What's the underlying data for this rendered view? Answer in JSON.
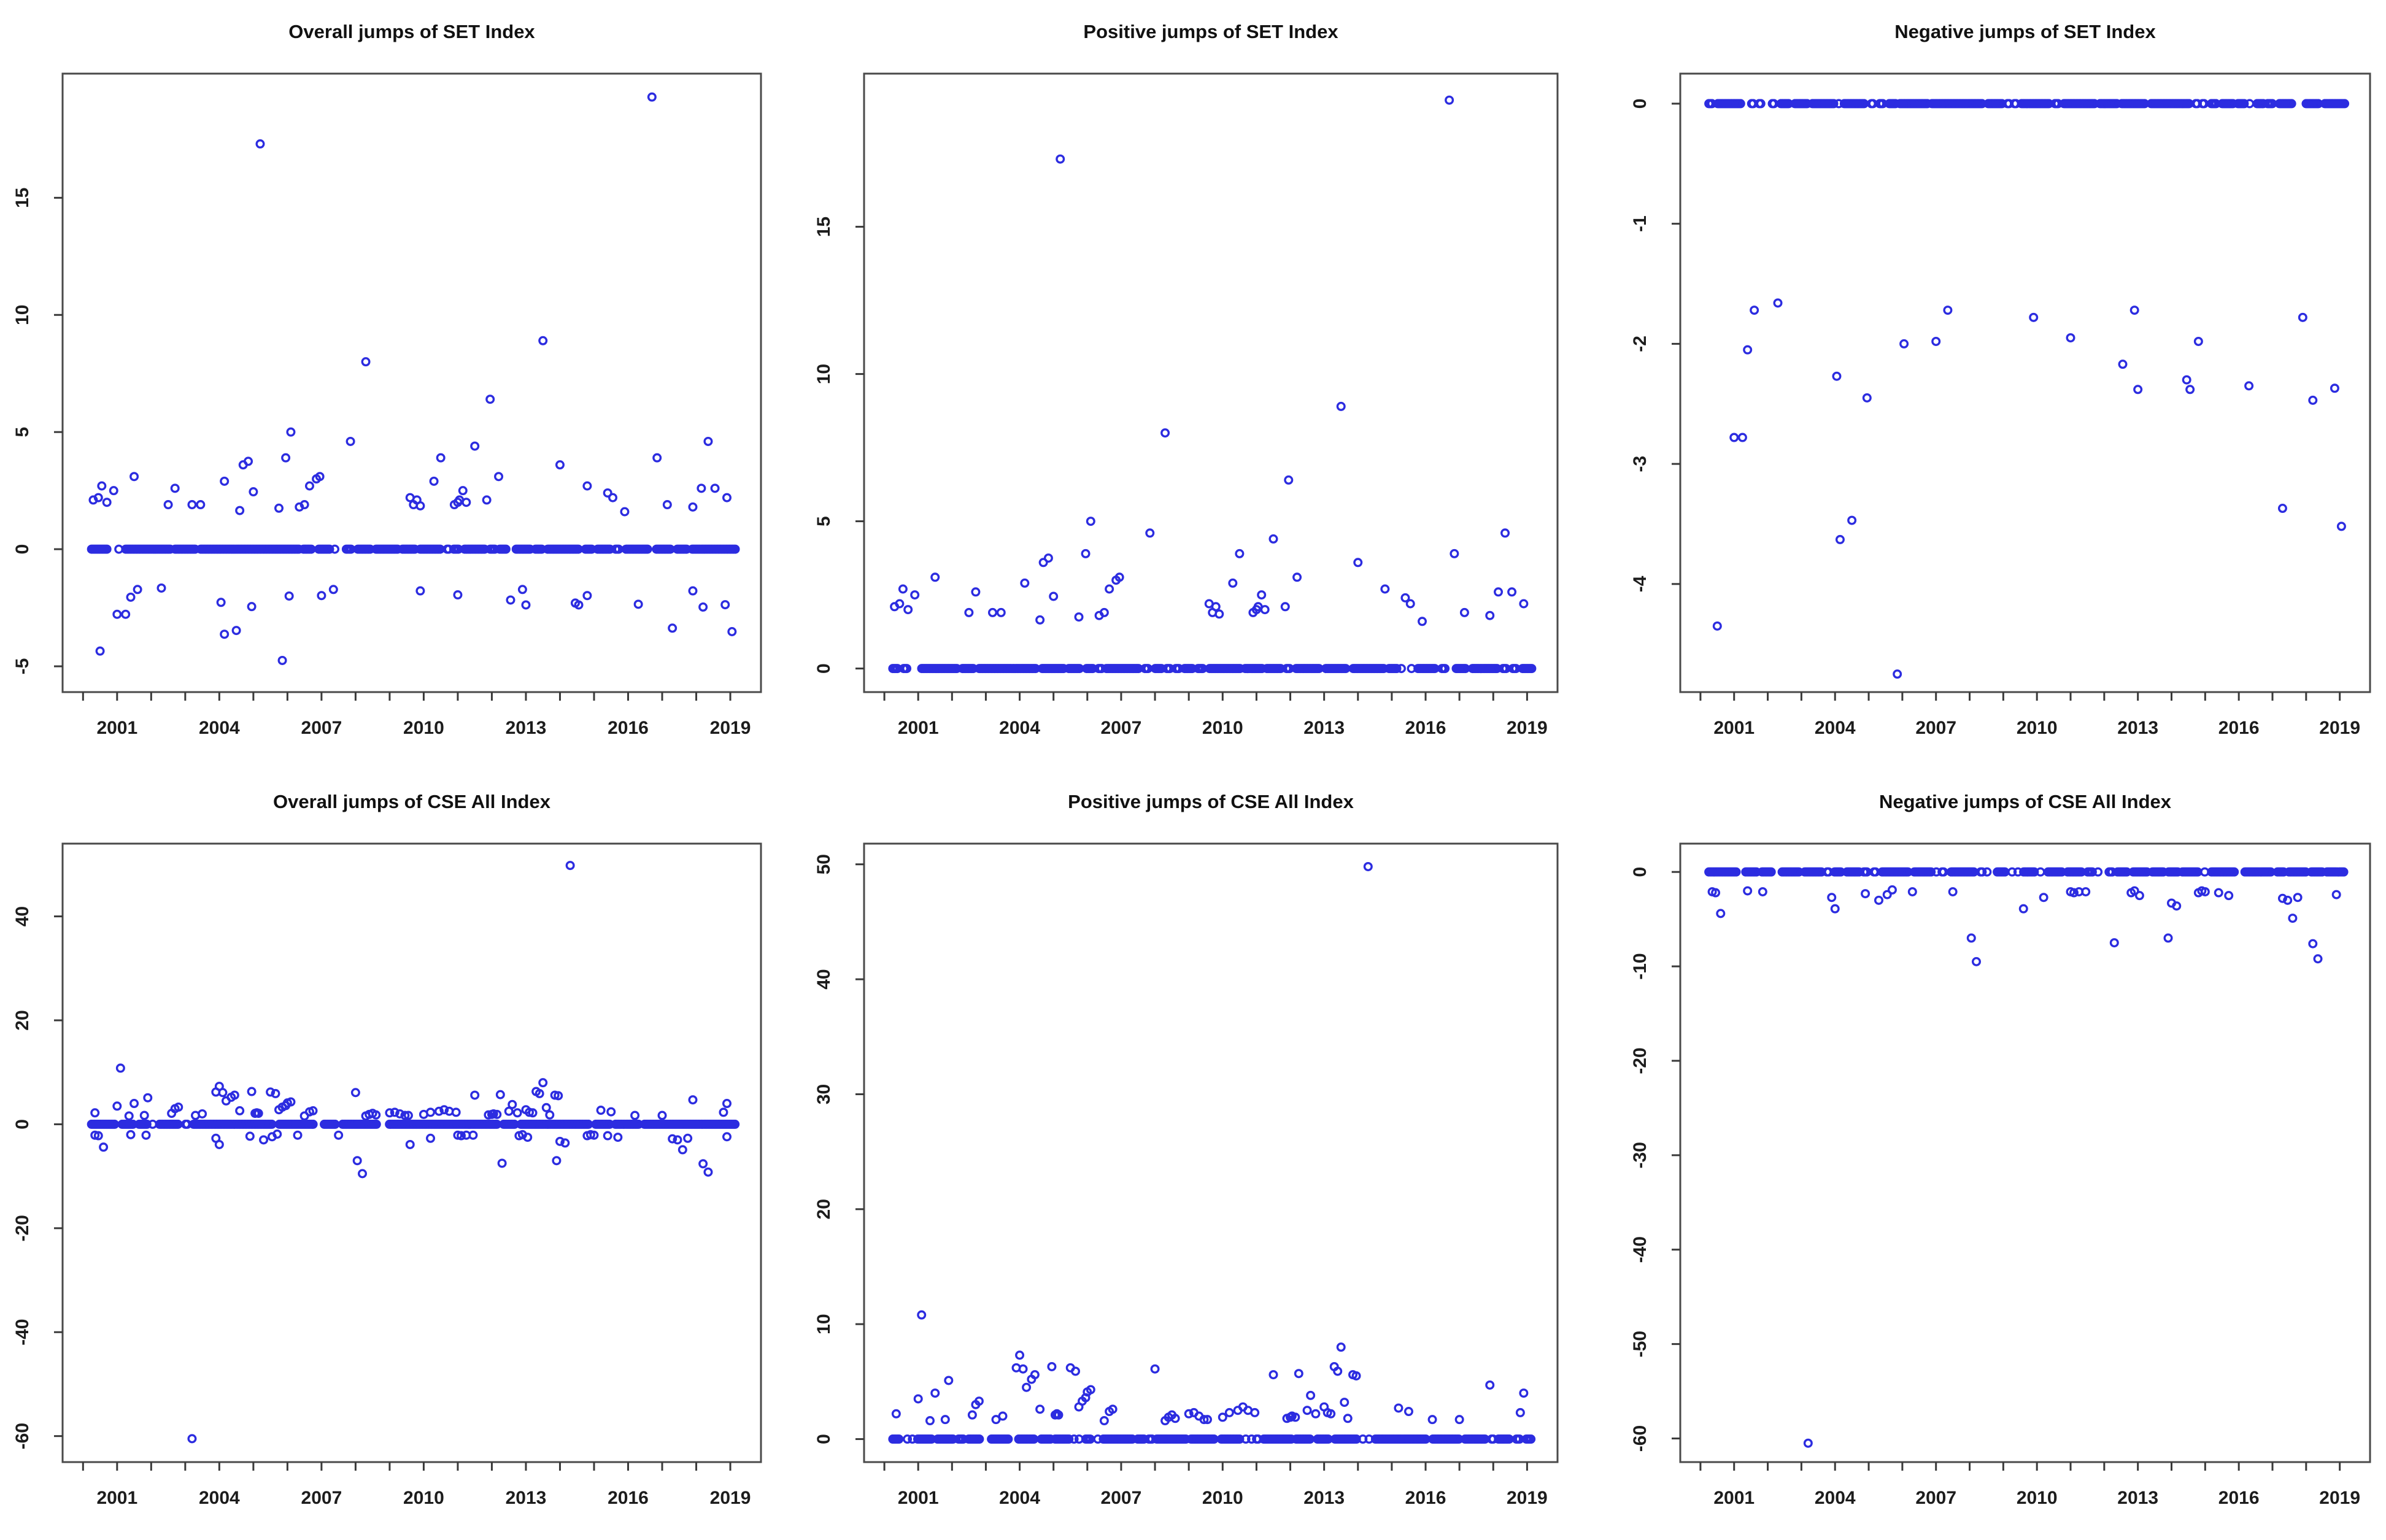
{
  "figure": {
    "background": "#ffffff",
    "point_color": "#2c2ce0",
    "box_color": "#4a4a4a",
    "tick_color": "#3a3a3a",
    "label_color": "#1c1c1c",
    "title_color": "#111111"
  },
  "series": {
    "set_positive": [
      [
        2000.3,
        2.1
      ],
      [
        2000.45,
        2.2
      ],
      [
        2000.55,
        2.7
      ],
      [
        2000.7,
        2.0
      ],
      [
        2000.9,
        2.5
      ],
      [
        2001.5,
        3.1
      ],
      [
        2002.5,
        1.9
      ],
      [
        2002.7,
        2.6
      ],
      [
        2003.2,
        1.9
      ],
      [
        2003.45,
        1.9
      ],
      [
        2004.15,
        2.9
      ],
      [
        2004.6,
        1.65
      ],
      [
        2004.7,
        3.6
      ],
      [
        2004.85,
        3.75
      ],
      [
        2005.0,
        2.45
      ],
      [
        2005.2,
        17.3
      ],
      [
        2005.75,
        1.75
      ],
      [
        2005.95,
        3.9
      ],
      [
        2006.1,
        5.0
      ],
      [
        2006.35,
        1.8
      ],
      [
        2006.5,
        1.9
      ],
      [
        2006.65,
        2.7
      ],
      [
        2006.85,
        3.0
      ],
      [
        2006.95,
        3.1
      ],
      [
        2007.85,
        4.6
      ],
      [
        2008.3,
        8.0
      ],
      [
        2009.6,
        2.2
      ],
      [
        2009.7,
        1.9
      ],
      [
        2009.8,
        2.1
      ],
      [
        2009.9,
        1.85
      ],
      [
        2010.3,
        2.9
      ],
      [
        2010.5,
        3.9
      ],
      [
        2010.9,
        1.9
      ],
      [
        2011.0,
        2.0
      ],
      [
        2011.05,
        2.1
      ],
      [
        2011.15,
        2.5
      ],
      [
        2011.25,
        2.0
      ],
      [
        2011.5,
        4.4
      ],
      [
        2011.85,
        2.1
      ],
      [
        2011.95,
        6.4
      ],
      [
        2012.2,
        3.1
      ],
      [
        2013.5,
        8.9
      ],
      [
        2014.0,
        3.6
      ],
      [
        2014.8,
        2.7
      ],
      [
        2015.4,
        2.4
      ],
      [
        2015.55,
        2.2
      ],
      [
        2015.9,
        1.6
      ],
      [
        2016.7,
        19.3
      ],
      [
        2016.85,
        3.9
      ],
      [
        2017.15,
        1.9
      ],
      [
        2017.9,
        1.8
      ],
      [
        2018.15,
        2.6
      ],
      [
        2018.35,
        4.6
      ],
      [
        2018.55,
        2.6
      ],
      [
        2018.9,
        2.2
      ]
    ],
    "set_negative": [
      [
        2000.5,
        -4.35
      ],
      [
        2001.0,
        -2.78
      ],
      [
        2001.25,
        -2.78
      ],
      [
        2001.4,
        -2.05
      ],
      [
        2001.6,
        -1.72
      ],
      [
        2002.3,
        -1.66
      ],
      [
        2004.05,
        -2.27
      ],
      [
        2004.15,
        -3.63
      ],
      [
        2004.5,
        -3.47
      ],
      [
        2004.95,
        -2.45
      ],
      [
        2005.85,
        -4.75
      ],
      [
        2006.05,
        -2.0
      ],
      [
        2007.0,
        -1.98
      ],
      [
        2007.35,
        -1.72
      ],
      [
        2009.9,
        -1.78
      ],
      [
        2011.0,
        -1.95
      ],
      [
        2012.55,
        -2.17
      ],
      [
        2012.9,
        -1.72
      ],
      [
        2013.0,
        -2.38
      ],
      [
        2014.45,
        -2.3
      ],
      [
        2014.55,
        -2.38
      ],
      [
        2014.8,
        -1.98
      ],
      [
        2016.3,
        -2.35
      ],
      [
        2017.3,
        -3.37
      ],
      [
        2017.9,
        -1.78
      ],
      [
        2018.2,
        -2.47
      ],
      [
        2018.85,
        -2.37
      ],
      [
        2019.05,
        -3.52
      ]
    ],
    "cse_positive": [
      [
        2000.35,
        2.2
      ],
      [
        2001.0,
        3.5
      ],
      [
        2001.1,
        10.8
      ],
      [
        2001.35,
        1.6
      ],
      [
        2001.5,
        4.0
      ],
      [
        2001.8,
        1.7
      ],
      [
        2001.9,
        5.1
      ],
      [
        2002.6,
        2.1
      ],
      [
        2002.7,
        3.0
      ],
      [
        2002.8,
        3.3
      ],
      [
        2003.3,
        1.7
      ],
      [
        2003.5,
        2.0
      ],
      [
        2003.9,
        6.2
      ],
      [
        2004.0,
        7.3
      ],
      [
        2004.1,
        6.1
      ],
      [
        2004.2,
        4.5
      ],
      [
        2004.35,
        5.2
      ],
      [
        2004.45,
        5.6
      ],
      [
        2004.6,
        2.6
      ],
      [
        2004.95,
        6.3
      ],
      [
        2005.05,
        2.1
      ],
      [
        2005.1,
        2.2
      ],
      [
        2005.15,
        2.1
      ],
      [
        2005.5,
        6.2
      ],
      [
        2005.65,
        5.9
      ],
      [
        2005.75,
        2.8
      ],
      [
        2005.85,
        3.3
      ],
      [
        2005.95,
        3.6
      ],
      [
        2006.0,
        4.1
      ],
      [
        2006.1,
        4.3
      ],
      [
        2006.5,
        1.6
      ],
      [
        2006.65,
        2.4
      ],
      [
        2006.75,
        2.6
      ],
      [
        2008.0,
        6.1
      ],
      [
        2008.3,
        1.6
      ],
      [
        2008.4,
        1.9
      ],
      [
        2008.5,
        2.1
      ],
      [
        2008.6,
        1.8
      ],
      [
        2009.0,
        2.2
      ],
      [
        2009.15,
        2.3
      ],
      [
        2009.3,
        2.0
      ],
      [
        2009.45,
        1.7
      ],
      [
        2009.55,
        1.7
      ],
      [
        2010.0,
        1.9
      ],
      [
        2010.2,
        2.3
      ],
      [
        2010.45,
        2.5
      ],
      [
        2010.6,
        2.8
      ],
      [
        2010.75,
        2.5
      ],
      [
        2010.95,
        2.3
      ],
      [
        2011.5,
        5.6
      ],
      [
        2011.9,
        1.8
      ],
      [
        2012.0,
        1.9
      ],
      [
        2012.05,
        2.0
      ],
      [
        2012.15,
        1.9
      ],
      [
        2012.25,
        5.7
      ],
      [
        2012.5,
        2.5
      ],
      [
        2012.6,
        3.8
      ],
      [
        2012.75,
        2.2
      ],
      [
        2013.0,
        2.8
      ],
      [
        2013.1,
        2.3
      ],
      [
        2013.2,
        2.2
      ],
      [
        2013.3,
        6.3
      ],
      [
        2013.4,
        5.9
      ],
      [
        2013.5,
        8.0
      ],
      [
        2013.6,
        3.2
      ],
      [
        2013.7,
        1.8
      ],
      [
        2013.85,
        5.6
      ],
      [
        2013.95,
        5.5
      ],
      [
        2014.3,
        49.8
      ],
      [
        2015.2,
        2.7
      ],
      [
        2015.5,
        2.4
      ],
      [
        2016.2,
        1.7
      ],
      [
        2017.0,
        1.7
      ],
      [
        2017.9,
        4.7
      ],
      [
        2018.8,
        2.3
      ],
      [
        2018.9,
        4.0
      ]
    ],
    "cse_negative": [
      [
        2000.35,
        -2.1
      ],
      [
        2000.45,
        -2.2
      ],
      [
        2000.6,
        -4.4
      ],
      [
        2001.4,
        -2.0
      ],
      [
        2001.85,
        -2.1
      ],
      [
        2003.2,
        -60.5
      ],
      [
        2003.9,
        -2.7
      ],
      [
        2004.0,
        -3.9
      ],
      [
        2004.9,
        -2.3
      ],
      [
        2005.3,
        -3.0
      ],
      [
        2005.55,
        -2.4
      ],
      [
        2005.7,
        -1.9
      ],
      [
        2006.3,
        -2.1
      ],
      [
        2007.5,
        -2.1
      ],
      [
        2008.05,
        -7.0
      ],
      [
        2008.2,
        -9.5
      ],
      [
        2009.6,
        -3.9
      ],
      [
        2010.2,
        -2.7
      ],
      [
        2011.0,
        -2.1
      ],
      [
        2011.1,
        -2.2
      ],
      [
        2011.25,
        -2.1
      ],
      [
        2011.45,
        -2.1
      ],
      [
        2012.3,
        -7.5
      ],
      [
        2012.8,
        -2.2
      ],
      [
        2012.9,
        -2.0
      ],
      [
        2013.05,
        -2.5
      ],
      [
        2013.9,
        -7.0
      ],
      [
        2014.0,
        -3.3
      ],
      [
        2014.15,
        -3.6
      ],
      [
        2014.8,
        -2.2
      ],
      [
        2014.9,
        -2.0
      ],
      [
        2015.0,
        -2.1
      ],
      [
        2015.4,
        -2.2
      ],
      [
        2015.7,
        -2.5
      ],
      [
        2017.3,
        -2.8
      ],
      [
        2017.45,
        -3.0
      ],
      [
        2017.6,
        -4.9
      ],
      [
        2017.75,
        -2.7
      ],
      [
        2018.2,
        -7.6
      ],
      [
        2018.35,
        -9.2
      ],
      [
        2018.9,
        -2.4
      ]
    ]
  },
  "chart_data": [
    {
      "id": "set-overall",
      "type": "scatter",
      "title": "Overall jumps of SET Index",
      "xlim": [
        1999.4,
        2019.9
      ],
      "ylim": [
        -6.1,
        20.3
      ],
      "x_ticks": {
        "minor": [
          2000,
          2001,
          2002,
          2003,
          2004,
          2005,
          2006,
          2007,
          2008,
          2009,
          2010,
          2011,
          2012,
          2013,
          2014,
          2015,
          2016,
          2017,
          2018,
          2019
        ],
        "labeled": [
          "2001",
          "2004",
          "2007",
          "2010",
          "2013",
          "2016",
          "2019"
        ],
        "labeled_years": [
          2001,
          2004,
          2007,
          2010,
          2013,
          2016,
          2019
        ]
      },
      "y_ticks": [
        "-5",
        "0",
        "5",
        "10",
        "15"
      ],
      "y_tick_values": [
        -5,
        0,
        5,
        10,
        15
      ],
      "zero_stripe": {
        "y": 0,
        "x_start": 2000.25,
        "x_end": 2019.15,
        "gap_fraction": 0.08
      },
      "points_from": [
        "set_positive",
        "set_negative"
      ]
    },
    {
      "id": "set-positive",
      "type": "scatter",
      "title": "Positive jumps of SET Index",
      "xlim": [
        1999.4,
        2019.9
      ],
      "ylim": [
        -0.8,
        20.2
      ],
      "x_ticks": {
        "minor": [
          2000,
          2001,
          2002,
          2003,
          2004,
          2005,
          2006,
          2007,
          2008,
          2009,
          2010,
          2011,
          2012,
          2013,
          2014,
          2015,
          2016,
          2017,
          2018,
          2019
        ],
        "labeled": [
          "2001",
          "2004",
          "2007",
          "2010",
          "2013",
          "2016",
          "2019"
        ],
        "labeled_years": [
          2001,
          2004,
          2007,
          2010,
          2013,
          2016,
          2019
        ]
      },
      "y_ticks": [
        "0",
        "5",
        "10",
        "15"
      ],
      "y_tick_values": [
        0,
        5,
        10,
        15
      ],
      "zero_stripe": {
        "y": 0,
        "x_start": 2000.25,
        "x_end": 2019.15,
        "gap_fraction": 0.08
      },
      "points_from": [
        "set_positive"
      ]
    },
    {
      "id": "set-negative",
      "type": "scatter",
      "title": "Negative jumps of SET Index",
      "xlim": [
        1999.4,
        2019.9
      ],
      "ylim": [
        -4.9,
        0.25
      ],
      "x_ticks": {
        "minor": [
          2000,
          2001,
          2002,
          2003,
          2004,
          2005,
          2006,
          2007,
          2008,
          2009,
          2010,
          2011,
          2012,
          2013,
          2014,
          2015,
          2016,
          2017,
          2018,
          2019
        ],
        "labeled": [
          "2001",
          "2004",
          "2007",
          "2010",
          "2013",
          "2016",
          "2019"
        ],
        "labeled_years": [
          2001,
          2004,
          2007,
          2010,
          2013,
          2016,
          2019
        ]
      },
      "y_ticks": [
        "0",
        "-1",
        "-2",
        "-3",
        "-4"
      ],
      "y_tick_values": [
        0,
        -1,
        -2,
        -3,
        -4
      ],
      "zero_stripe": {
        "y": 0,
        "x_start": 2000.25,
        "x_end": 2019.15,
        "gap_fraction": 0.14
      },
      "points_from": [
        "set_negative"
      ]
    },
    {
      "id": "cse-overall",
      "type": "scatter",
      "title": "Overall jumps of CSE All Index",
      "xlim": [
        1999.4,
        2019.9
      ],
      "ylim": [
        -65.0,
        54.0
      ],
      "x_ticks": {
        "minor": [
          2000,
          2001,
          2002,
          2003,
          2004,
          2005,
          2006,
          2007,
          2008,
          2009,
          2010,
          2011,
          2012,
          2013,
          2014,
          2015,
          2016,
          2017,
          2018,
          2019
        ],
        "labeled": [
          "2001",
          "2004",
          "2007",
          "2010",
          "2013",
          "2016",
          "2019"
        ],
        "labeled_years": [
          2001,
          2004,
          2007,
          2010,
          2013,
          2016,
          2019
        ]
      },
      "y_ticks": [
        "-60",
        "-40",
        "-20",
        "0",
        "20",
        "40"
      ],
      "y_tick_values": [
        -60,
        -40,
        -20,
        0,
        20,
        40
      ],
      "zero_stripe": {
        "y": 0,
        "x_start": 2000.25,
        "x_end": 2019.15,
        "gap_fraction": 0.05
      },
      "points_from": [
        "cse_positive",
        "cse_negative"
      ]
    },
    {
      "id": "cse-positive",
      "type": "scatter",
      "title": "Positive jumps of CSE All Index",
      "xlim": [
        1999.4,
        2019.9
      ],
      "ylim": [
        -2.0,
        51.8
      ],
      "x_ticks": {
        "minor": [
          2000,
          2001,
          2002,
          2003,
          2004,
          2005,
          2006,
          2007,
          2008,
          2009,
          2010,
          2011,
          2012,
          2013,
          2014,
          2015,
          2016,
          2017,
          2018,
          2019
        ],
        "labeled": [
          "2001",
          "2004",
          "2007",
          "2010",
          "2013",
          "2016",
          "2019"
        ],
        "labeled_years": [
          2001,
          2004,
          2007,
          2010,
          2013,
          2016,
          2019
        ]
      },
      "y_ticks": [
        "0",
        "10",
        "20",
        "30",
        "40",
        "50"
      ],
      "y_tick_values": [
        0,
        10,
        20,
        30,
        40,
        50
      ],
      "zero_stripe": {
        "y": 0,
        "x_start": 2000.25,
        "x_end": 2019.15,
        "gap_fraction": 0.1
      },
      "points_from": [
        "cse_positive"
      ]
    },
    {
      "id": "cse-negative",
      "type": "scatter",
      "title": "Negative jumps of CSE All Index",
      "xlim": [
        1999.4,
        2019.9
      ],
      "ylim": [
        -62.5,
        3.0
      ],
      "x_ticks": {
        "minor": [
          2000,
          2001,
          2002,
          2003,
          2004,
          2005,
          2006,
          2007,
          2008,
          2009,
          2010,
          2011,
          2012,
          2013,
          2014,
          2015,
          2016,
          2017,
          2018,
          2019
        ],
        "labeled": [
          "2001",
          "2004",
          "2007",
          "2010",
          "2013",
          "2016",
          "2019"
        ],
        "labeled_years": [
          2001,
          2004,
          2007,
          2010,
          2013,
          2016,
          2019
        ]
      },
      "y_ticks": [
        "0",
        "-10",
        "-20",
        "-30",
        "-40",
        "-50",
        "-60"
      ],
      "y_tick_values": [
        0,
        -10,
        -20,
        -30,
        -40,
        -50,
        -60
      ],
      "zero_stripe": {
        "y": 0,
        "x_start": 2000.25,
        "x_end": 2019.15,
        "gap_fraction": 0.12
      },
      "points_from": [
        "cse_negative"
      ]
    }
  ]
}
